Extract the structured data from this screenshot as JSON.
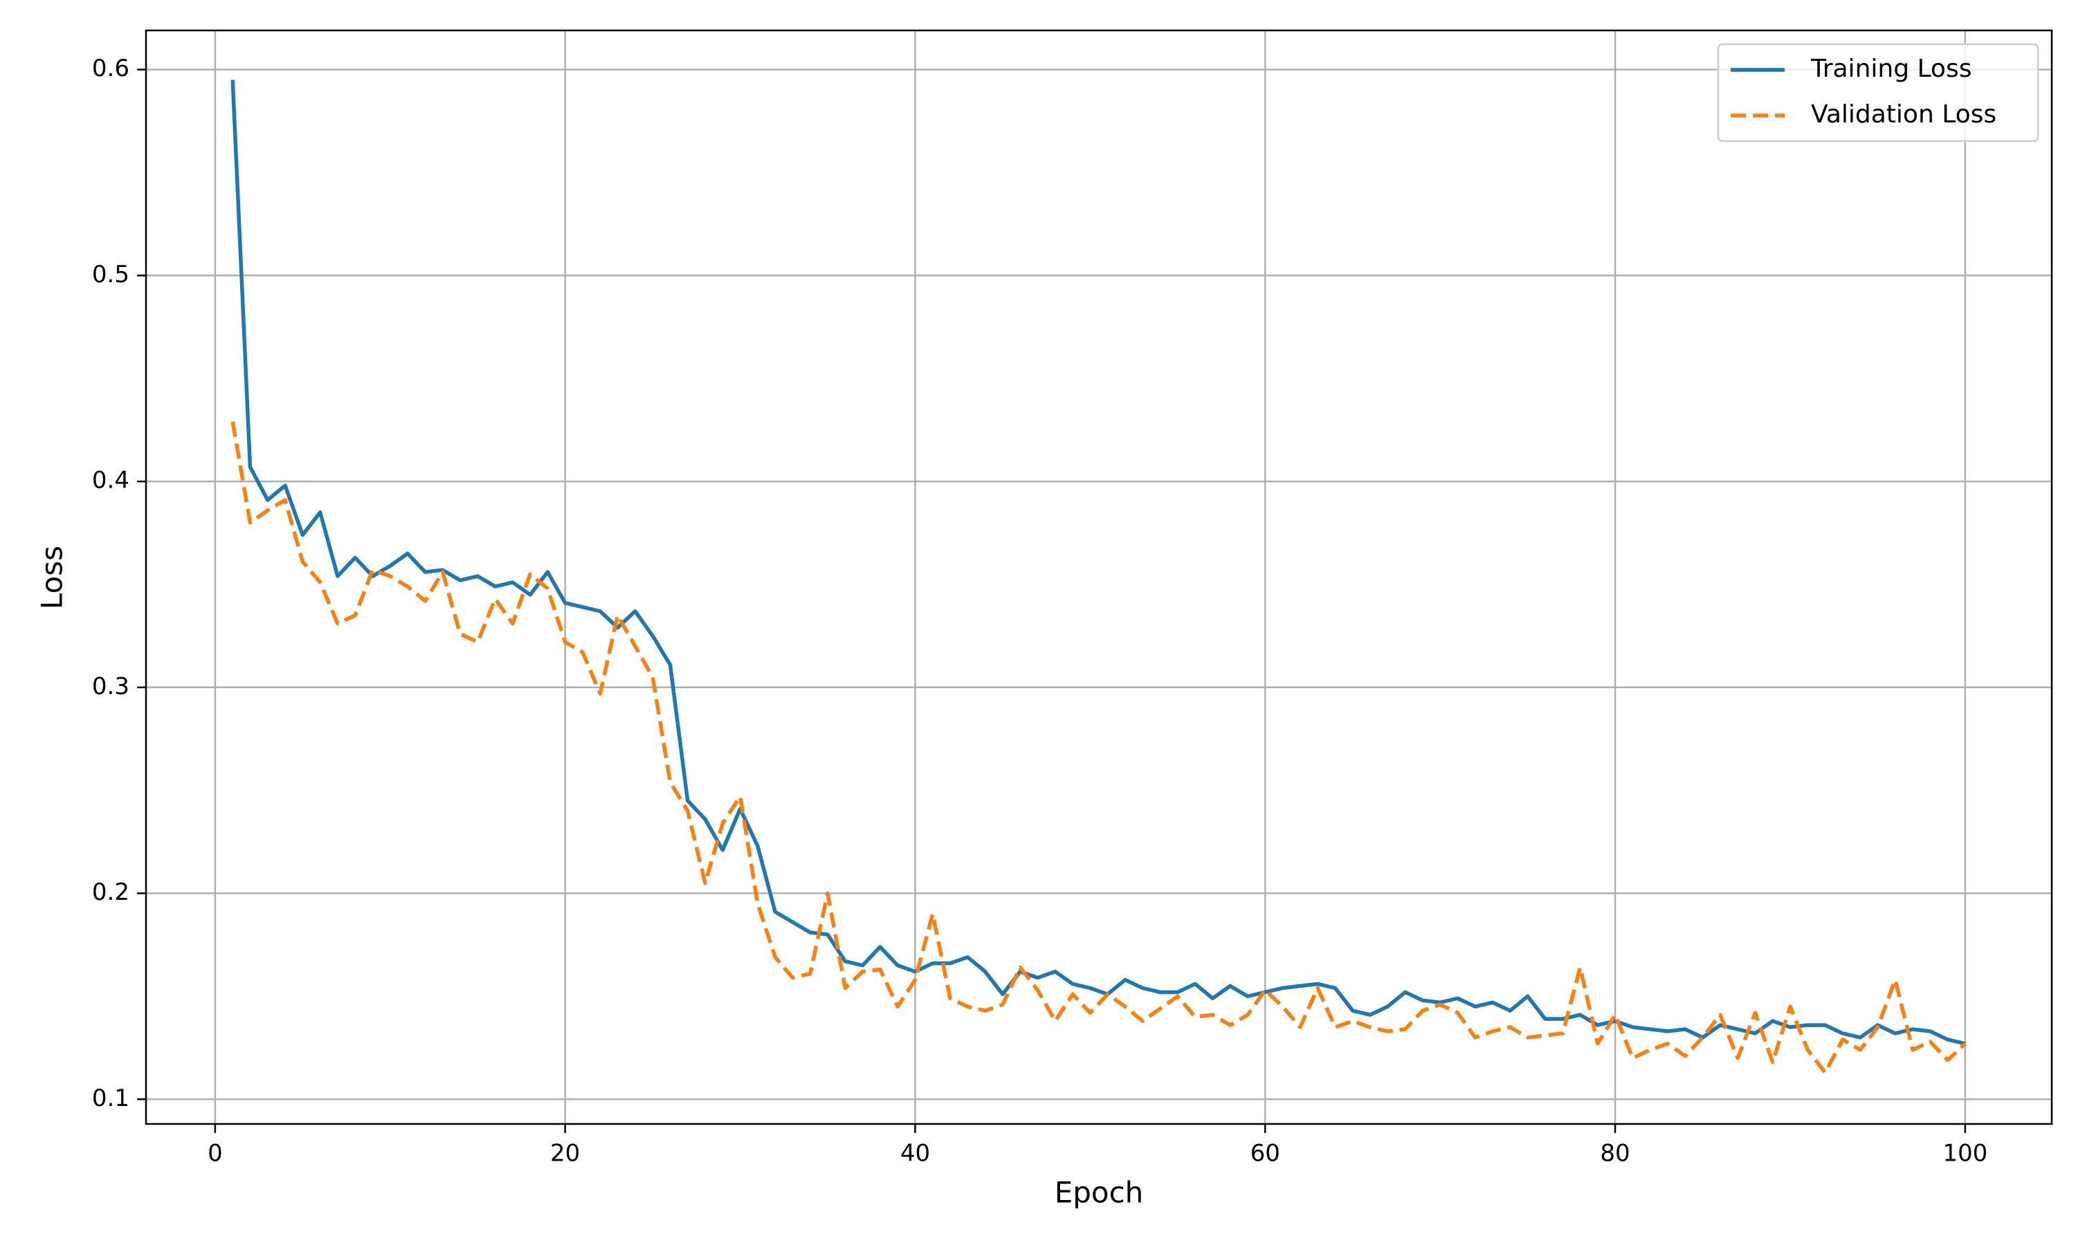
{
  "chart_data": {
    "type": "line",
    "x_label": "Epoch",
    "y_label": "Loss",
    "x": [
      1,
      2,
      3,
      4,
      5,
      6,
      7,
      8,
      9,
      10,
      11,
      12,
      13,
      14,
      15,
      16,
      17,
      18,
      19,
      20,
      21,
      22,
      23,
      24,
      25,
      26,
      27,
      28,
      29,
      30,
      31,
      32,
      33,
      34,
      35,
      36,
      37,
      38,
      39,
      40,
      41,
      42,
      43,
      44,
      45,
      46,
      47,
      48,
      49,
      50,
      51,
      52,
      53,
      54,
      55,
      56,
      57,
      58,
      59,
      60,
      61,
      62,
      63,
      64,
      65,
      66,
      67,
      68,
      69,
      70,
      71,
      72,
      73,
      74,
      75,
      76,
      77,
      78,
      79,
      80,
      81,
      82,
      83,
      84,
      85,
      86,
      87,
      88,
      89,
      90,
      91,
      92,
      93,
      94,
      95,
      96,
      97,
      98,
      99,
      100
    ],
    "series": [
      {
        "name": "Training Loss",
        "color": "#1f77b4",
        "linestyle": "solid",
        "values": [
          0.595,
          0.407,
          0.391,
          0.398,
          0.374,
          0.385,
          0.354,
          0.363,
          0.354,
          0.359,
          0.365,
          0.356,
          0.357,
          0.352,
          0.354,
          0.349,
          0.351,
          0.345,
          0.356,
          0.341,
          0.339,
          0.337,
          0.329,
          0.337,
          0.325,
          0.311,
          0.245,
          0.236,
          0.221,
          0.241,
          0.223,
          0.191,
          0.186,
          0.181,
          0.18,
          0.167,
          0.165,
          0.174,
          0.165,
          0.162,
          0.166,
          0.166,
          0.169,
          0.162,
          0.151,
          0.162,
          0.159,
          0.162,
          0.156,
          0.154,
          0.151,
          0.158,
          0.154,
          0.152,
          0.152,
          0.156,
          0.149,
          0.155,
          0.15,
          0.152,
          0.154,
          0.155,
          0.156,
          0.154,
          0.143,
          0.141,
          0.145,
          0.152,
          0.148,
          0.147,
          0.149,
          0.145,
          0.147,
          0.143,
          0.15,
          0.139,
          0.139,
          0.141,
          0.136,
          0.138,
          0.135,
          0.134,
          0.133,
          0.134,
          0.13,
          0.136,
          0.134,
          0.132,
          0.138,
          0.135,
          0.136,
          0.136,
          0.132,
          0.13,
          0.136,
          0.132,
          0.134,
          0.133,
          0.129,
          0.127
        ]
      },
      {
        "name": "Validation Loss",
        "color": "#ff7f0e",
        "linestyle": "dashed",
        "values": [
          0.429,
          0.38,
          0.386,
          0.391,
          0.361,
          0.351,
          0.331,
          0.335,
          0.357,
          0.354,
          0.349,
          0.342,
          0.356,
          0.326,
          0.322,
          0.343,
          0.331,
          0.355,
          0.348,
          0.322,
          0.317,
          0.297,
          0.335,
          0.32,
          0.305,
          0.254,
          0.24,
          0.205,
          0.234,
          0.247,
          0.195,
          0.169,
          0.159,
          0.161,
          0.2,
          0.154,
          0.162,
          0.163,
          0.145,
          0.158,
          0.19,
          0.149,
          0.145,
          0.143,
          0.146,
          0.164,
          0.153,
          0.138,
          0.151,
          0.142,
          0.151,
          0.145,
          0.138,
          0.144,
          0.15,
          0.14,
          0.141,
          0.136,
          0.141,
          0.153,
          0.145,
          0.135,
          0.154,
          0.135,
          0.138,
          0.135,
          0.133,
          0.134,
          0.143,
          0.146,
          0.142,
          0.13,
          0.133,
          0.135,
          0.13,
          0.131,
          0.132,
          0.164,
          0.127,
          0.141,
          0.12,
          0.124,
          0.127,
          0.121,
          0.13,
          0.141,
          0.12,
          0.142,
          0.118,
          0.145,
          0.124,
          0.113,
          0.129,
          0.124,
          0.135,
          0.158,
          0.124,
          0.128,
          0.119,
          0.127
        ]
      }
    ],
    "xlim": [
      -3.95,
      104.95
    ],
    "xticks": [
      0,
      20,
      40,
      60,
      80,
      100
    ],
    "ylim": [
      0.088,
      0.619
    ],
    "yticks": [
      0.1,
      0.2,
      0.3,
      0.4,
      0.5,
      0.6
    ],
    "grid": true,
    "legend": "upper right"
  }
}
